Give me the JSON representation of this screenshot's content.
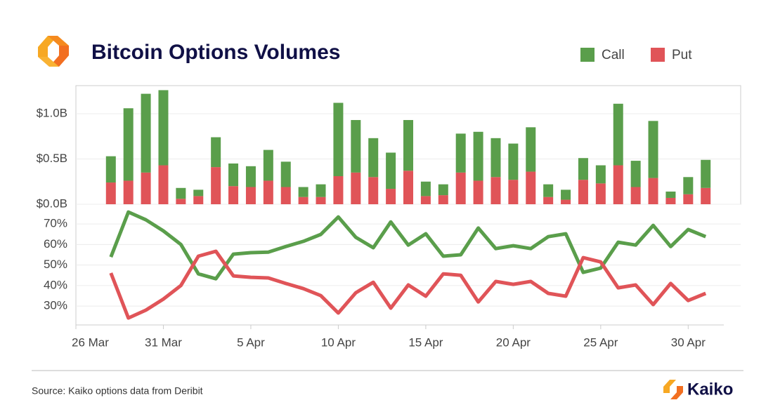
{
  "chart_data": [
    {
      "type": "bar",
      "stacked": true,
      "title": "Bitcoin Options Volumes",
      "legend": "top-right",
      "grid": true,
      "x": [
        "28 Mar",
        "29 Mar",
        "30 Mar",
        "31 Mar",
        "1 Apr",
        "2 Apr",
        "3 Apr",
        "4 Apr",
        "5 Apr",
        "6 Apr",
        "7 Apr",
        "8 Apr",
        "9 Apr",
        "10 Apr",
        "11 Apr",
        "12 Apr",
        "13 Apr",
        "14 Apr",
        "15 Apr",
        "16 Apr",
        "17 Apr",
        "18 Apr",
        "19 Apr",
        "20 Apr",
        "21 Apr",
        "22 Apr",
        "23 Apr",
        "24 Apr",
        "25 Apr",
        "26 Apr",
        "27 Apr",
        "28 Apr",
        "29 Apr",
        "30 Apr",
        "1 May"
      ],
      "xlim": [
        "26 Mar",
        "3 May"
      ],
      "series": [
        {
          "name": "Call",
          "color": "#5a9e4b",
          "values": [
            0.29,
            0.8,
            0.87,
            0.83,
            0.12,
            0.07,
            0.33,
            0.25,
            0.23,
            0.34,
            0.28,
            0.11,
            0.14,
            0.81,
            0.58,
            0.43,
            0.4,
            0.56,
            0.16,
            0.12,
            0.43,
            0.54,
            0.43,
            0.4,
            0.49,
            0.14,
            0.11,
            0.24,
            0.2,
            0.68,
            0.29,
            0.63,
            0.07,
            0.19,
            0.31
          ]
        },
        {
          "name": "Put",
          "color": "#e05458",
          "values": [
            0.24,
            0.26,
            0.35,
            0.43,
            0.06,
            0.09,
            0.41,
            0.2,
            0.19,
            0.26,
            0.19,
            0.08,
            0.08,
            0.31,
            0.35,
            0.3,
            0.17,
            0.37,
            0.09,
            0.1,
            0.35,
            0.26,
            0.3,
            0.27,
            0.36,
            0.08,
            0.05,
            0.27,
            0.23,
            0.43,
            0.19,
            0.29,
            0.07,
            0.11,
            0.18
          ]
        }
      ],
      "ylim": [
        0,
        1.31
      ],
      "yticks": [
        {
          "value": 0,
          "label": "$0.0B"
        },
        {
          "value": 0.5,
          "label": "$0.5B"
        },
        {
          "value": 1.0,
          "label": "$1.0B"
        }
      ]
    },
    {
      "type": "line",
      "grid": true,
      "x": [
        "28 Mar",
        "29 Mar",
        "30 Mar",
        "31 Mar",
        "1 Apr",
        "2 Apr",
        "3 Apr",
        "4 Apr",
        "5 Apr",
        "6 Apr",
        "7 Apr",
        "8 Apr",
        "9 Apr",
        "10 Apr",
        "11 Apr",
        "12 Apr",
        "13 Apr",
        "14 Apr",
        "15 Apr",
        "16 Apr",
        "17 Apr",
        "18 Apr",
        "19 Apr",
        "20 Apr",
        "21 Apr",
        "22 Apr",
        "23 Apr",
        "24 Apr",
        "25 Apr",
        "26 Apr",
        "27 Apr",
        "28 Apr",
        "29 Apr",
        "30 Apr",
        "1 May"
      ],
      "xlim": [
        "26 Mar",
        "3 May"
      ],
      "xticks": [
        "26 Mar",
        "31 Mar",
        "5 Apr",
        "10 Apr",
        "15 Apr",
        "20 Apr",
        "25 Apr",
        "30 Apr"
      ],
      "series": [
        {
          "color": "#5a9e4b",
          "values": [
            53.9,
            75.8,
            72,
            66.6,
            60,
            45.7,
            43.3,
            55.3,
            56,
            56.3,
            59,
            61.5,
            64.9,
            73.4,
            63.5,
            58.4,
            71,
            59.7,
            65.2,
            54.3,
            55,
            68,
            58,
            59.4,
            58,
            63.8,
            65.2,
            46.4,
            48.5,
            61.1,
            59.7,
            69.3,
            59,
            67.3,
            63.8
          ]
        },
        {
          "color": "#e05458",
          "values": [
            46.1,
            24.2,
            28,
            33.4,
            40,
            54.3,
            56.7,
            44.7,
            44,
            43.7,
            41,
            38.5,
            35.1,
            26.6,
            36.5,
            41.6,
            29,
            40.3,
            34.8,
            45.7,
            45,
            32,
            42,
            40.6,
            42,
            36.2,
            34.8,
            53.6,
            51.5,
            38.9,
            40.3,
            30.7,
            41,
            32.7,
            36.2
          ]
        }
      ],
      "ylim": [
        20.8,
        79.6
      ],
      "yticks": [
        {
          "value": 30,
          "label": "30%"
        },
        {
          "value": 40,
          "label": "40%"
        },
        {
          "value": 50,
          "label": "50%"
        },
        {
          "value": 60,
          "label": "60%"
        },
        {
          "value": 70,
          "label": "70%"
        }
      ]
    }
  ],
  "footer": {
    "source": "Source: Kaiko options data from Deribit",
    "brand": "Kaiko"
  }
}
